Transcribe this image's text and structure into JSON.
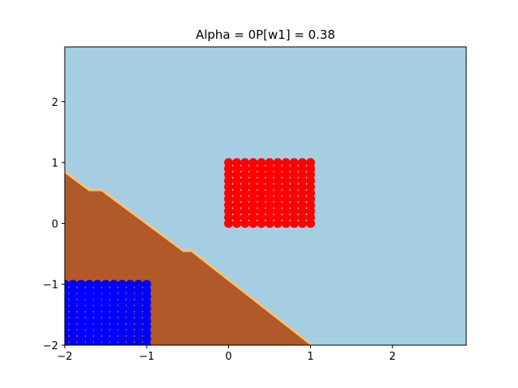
{
  "chart_data": {
    "type": "scatter",
    "title": "Alpha = 0P[w1] = 0.38",
    "xlabel": "",
    "ylabel": "",
    "xlim": [
      -2,
      2.9
    ],
    "ylim": [
      -2,
      2.9
    ],
    "xticks": [
      -2,
      -1,
      0,
      1,
      2
    ],
    "xtick_labels": [
      "−2",
      "−1",
      "0",
      "1",
      "2"
    ],
    "yticks": [
      -2,
      -1,
      0,
      1,
      2
    ],
    "ytick_labels": [
      "−2",
      "−1",
      "0",
      "1",
      "2"
    ],
    "grid": false,
    "legend": "none",
    "decision_regions": [
      {
        "color": "#a6cee3",
        "polygon": [
          [
            -2,
            -2
          ],
          [
            2.9,
            -2
          ],
          [
            2.9,
            2.9
          ],
          [
            -2,
            2.9
          ]
        ]
      },
      {
        "color": "#b15928",
        "polygon": [
          [
            -2,
            -2
          ],
          [
            1.02,
            -2
          ],
          [
            -0.45,
            -0.45
          ],
          [
            -0.55,
            -0.45
          ],
          [
            -1.55,
            0.55
          ],
          [
            -1.7,
            0.55
          ],
          [
            -2,
            0.85
          ]
        ]
      }
    ],
    "boundary": {
      "color": "#fdbf6f",
      "points": [
        [
          -2,
          0.85
        ],
        [
          -1.7,
          0.55
        ],
        [
          -1.55,
          0.55
        ],
        [
          -0.55,
          -0.45
        ],
        [
          -0.45,
          -0.45
        ],
        [
          1.02,
          -2
        ]
      ]
    },
    "series": [
      {
        "color": "#ff0000",
        "points": [
          [
            0,
            0
          ],
          [
            0.1,
            0
          ],
          [
            0.2,
            0
          ],
          [
            0.3,
            0
          ],
          [
            0.4,
            0
          ],
          [
            0.5,
            0
          ],
          [
            0.6,
            0
          ],
          [
            0.7,
            0
          ],
          [
            0.8,
            0
          ],
          [
            0.9,
            0
          ],
          [
            1.0,
            0
          ],
          [
            0,
            0.1
          ],
          [
            0.1,
            0.1
          ],
          [
            0.2,
            0.1
          ],
          [
            0.3,
            0.1
          ],
          [
            0.4,
            0.1
          ],
          [
            0.5,
            0.1
          ],
          [
            0.6,
            0.1
          ],
          [
            0.7,
            0.1
          ],
          [
            0.8,
            0.1
          ],
          [
            0.9,
            0.1
          ],
          [
            1.0,
            0.1
          ],
          [
            0,
            0.2
          ],
          [
            0.1,
            0.2
          ],
          [
            0.2,
            0.2
          ],
          [
            0.3,
            0.2
          ],
          [
            0.4,
            0.2
          ],
          [
            0.5,
            0.2
          ],
          [
            0.6,
            0.2
          ],
          [
            0.7,
            0.2
          ],
          [
            0.8,
            0.2
          ],
          [
            0.9,
            0.2
          ],
          [
            1.0,
            0.2
          ],
          [
            0,
            0.3
          ],
          [
            0.1,
            0.3
          ],
          [
            0.2,
            0.3
          ],
          [
            0.3,
            0.3
          ],
          [
            0.4,
            0.3
          ],
          [
            0.5,
            0.3
          ],
          [
            0.6,
            0.3
          ],
          [
            0.7,
            0.3
          ],
          [
            0.8,
            0.3
          ],
          [
            0.9,
            0.3
          ],
          [
            1.0,
            0.3
          ],
          [
            0,
            0.4
          ],
          [
            0.1,
            0.4
          ],
          [
            0.2,
            0.4
          ],
          [
            0.3,
            0.4
          ],
          [
            0.4,
            0.4
          ],
          [
            0.5,
            0.4
          ],
          [
            0.6,
            0.4
          ],
          [
            0.7,
            0.4
          ],
          [
            0.8,
            0.4
          ],
          [
            0.9,
            0.4
          ],
          [
            1.0,
            0.4
          ],
          [
            0,
            0.5
          ],
          [
            0.1,
            0.5
          ],
          [
            0.2,
            0.5
          ],
          [
            0.3,
            0.5
          ],
          [
            0.4,
            0.5
          ],
          [
            0.5,
            0.5
          ],
          [
            0.6,
            0.5
          ],
          [
            0.7,
            0.5
          ],
          [
            0.8,
            0.5
          ],
          [
            0.9,
            0.5
          ],
          [
            1.0,
            0.5
          ],
          [
            0,
            0.6
          ],
          [
            0.1,
            0.6
          ],
          [
            0.2,
            0.6
          ],
          [
            0.3,
            0.6
          ],
          [
            0.4,
            0.6
          ],
          [
            0.5,
            0.6
          ],
          [
            0.6,
            0.6
          ],
          [
            0.7,
            0.6
          ],
          [
            0.8,
            0.6
          ],
          [
            0.9,
            0.6
          ],
          [
            1.0,
            0.6
          ],
          [
            0,
            0.7
          ],
          [
            0.1,
            0.7
          ],
          [
            0.2,
            0.7
          ],
          [
            0.3,
            0.7
          ],
          [
            0.4,
            0.7
          ],
          [
            0.5,
            0.7
          ],
          [
            0.6,
            0.7
          ],
          [
            0.7,
            0.7
          ],
          [
            0.8,
            0.7
          ],
          [
            0.9,
            0.7
          ],
          [
            1.0,
            0.7
          ],
          [
            0,
            0.8
          ],
          [
            0.1,
            0.8
          ],
          [
            0.2,
            0.8
          ],
          [
            0.3,
            0.8
          ],
          [
            0.4,
            0.8
          ],
          [
            0.5,
            0.8
          ],
          [
            0.6,
            0.8
          ],
          [
            0.7,
            0.8
          ],
          [
            0.8,
            0.8
          ],
          [
            0.9,
            0.8
          ],
          [
            1.0,
            0.8
          ],
          [
            0,
            0.9
          ],
          [
            0.1,
            0.9
          ],
          [
            0.2,
            0.9
          ],
          [
            0.3,
            0.9
          ],
          [
            0.4,
            0.9
          ],
          [
            0.5,
            0.9
          ],
          [
            0.6,
            0.9
          ],
          [
            0.7,
            0.9
          ],
          [
            0.8,
            0.9
          ],
          [
            0.9,
            0.9
          ],
          [
            1.0,
            0.9
          ],
          [
            0,
            1.0
          ],
          [
            0.1,
            1.0
          ],
          [
            0.2,
            1.0
          ],
          [
            0.3,
            1.0
          ],
          [
            0.4,
            1.0
          ],
          [
            0.5,
            1.0
          ],
          [
            0.6,
            1.0
          ],
          [
            0.7,
            1.0
          ],
          [
            0.8,
            1.0
          ],
          [
            0.9,
            1.0
          ],
          [
            1.0,
            1.0
          ]
        ]
      },
      {
        "color": "#0000ff",
        "points": [
          [
            -2,
            -2
          ],
          [
            -1.9,
            -2
          ],
          [
            -1.8,
            -2
          ],
          [
            -1.7,
            -2
          ],
          [
            -1.6,
            -2
          ],
          [
            -1.5,
            -2
          ],
          [
            -1.4,
            -2
          ],
          [
            -1.3,
            -2
          ],
          [
            -1.2,
            -2
          ],
          [
            -1.1,
            -2
          ],
          [
            -1.0,
            -2
          ],
          [
            -2,
            -1.9
          ],
          [
            -1.9,
            -1.9
          ],
          [
            -1.8,
            -1.9
          ],
          [
            -1.7,
            -1.9
          ],
          [
            -1.6,
            -1.9
          ],
          [
            -1.5,
            -1.9
          ],
          [
            -1.4,
            -1.9
          ],
          [
            -1.3,
            -1.9
          ],
          [
            -1.2,
            -1.9
          ],
          [
            -1.1,
            -1.9
          ],
          [
            -1.0,
            -1.9
          ],
          [
            -2,
            -1.8
          ],
          [
            -1.9,
            -1.8
          ],
          [
            -1.8,
            -1.8
          ],
          [
            -1.7,
            -1.8
          ],
          [
            -1.6,
            -1.8
          ],
          [
            -1.5,
            -1.8
          ],
          [
            -1.4,
            -1.8
          ],
          [
            -1.3,
            -1.8
          ],
          [
            -1.2,
            -1.8
          ],
          [
            -1.1,
            -1.8
          ],
          [
            -1.0,
            -1.8
          ],
          [
            -2,
            -1.7
          ],
          [
            -1.9,
            -1.7
          ],
          [
            -1.8,
            -1.7
          ],
          [
            -1.7,
            -1.7
          ],
          [
            -1.6,
            -1.7
          ],
          [
            -1.5,
            -1.7
          ],
          [
            -1.4,
            -1.7
          ],
          [
            -1.3,
            -1.7
          ],
          [
            -1.2,
            -1.7
          ],
          [
            -1.1,
            -1.7
          ],
          [
            -1.0,
            -1.7
          ],
          [
            -2,
            -1.6
          ],
          [
            -1.9,
            -1.6
          ],
          [
            -1.8,
            -1.6
          ],
          [
            -1.7,
            -1.6
          ],
          [
            -1.6,
            -1.6
          ],
          [
            -1.5,
            -1.6
          ],
          [
            -1.4,
            -1.6
          ],
          [
            -1.3,
            -1.6
          ],
          [
            -1.2,
            -1.6
          ],
          [
            -1.1,
            -1.6
          ],
          [
            -1.0,
            -1.6
          ],
          [
            -2,
            -1.5
          ],
          [
            -1.9,
            -1.5
          ],
          [
            -1.8,
            -1.5
          ],
          [
            -1.7,
            -1.5
          ],
          [
            -1.6,
            -1.5
          ],
          [
            -1.5,
            -1.5
          ],
          [
            -1.4,
            -1.5
          ],
          [
            -1.3,
            -1.5
          ],
          [
            -1.2,
            -1.5
          ],
          [
            -1.1,
            -1.5
          ],
          [
            -1.0,
            -1.5
          ],
          [
            -2,
            -1.4
          ],
          [
            -1.9,
            -1.4
          ],
          [
            -1.8,
            -1.4
          ],
          [
            -1.7,
            -1.4
          ],
          [
            -1.6,
            -1.4
          ],
          [
            -1.5,
            -1.4
          ],
          [
            -1.4,
            -1.4
          ],
          [
            -1.3,
            -1.4
          ],
          [
            -1.2,
            -1.4
          ],
          [
            -1.1,
            -1.4
          ],
          [
            -1.0,
            -1.4
          ],
          [
            -2,
            -1.3
          ],
          [
            -1.9,
            -1.3
          ],
          [
            -1.8,
            -1.3
          ],
          [
            -1.7,
            -1.3
          ],
          [
            -1.6,
            -1.3
          ],
          [
            -1.5,
            -1.3
          ],
          [
            -1.4,
            -1.3
          ],
          [
            -1.3,
            -1.3
          ],
          [
            -1.2,
            -1.3
          ],
          [
            -1.1,
            -1.3
          ],
          [
            -1.0,
            -1.3
          ],
          [
            -2,
            -1.2
          ],
          [
            -1.9,
            -1.2
          ],
          [
            -1.8,
            -1.2
          ],
          [
            -1.7,
            -1.2
          ],
          [
            -1.6,
            -1.2
          ],
          [
            -1.5,
            -1.2
          ],
          [
            -1.4,
            -1.2
          ],
          [
            -1.3,
            -1.2
          ],
          [
            -1.2,
            -1.2
          ],
          [
            -1.1,
            -1.2
          ],
          [
            -1.0,
            -1.2
          ],
          [
            -2,
            -1.1
          ],
          [
            -1.9,
            -1.1
          ],
          [
            -1.8,
            -1.1
          ],
          [
            -1.7,
            -1.1
          ],
          [
            -1.6,
            -1.1
          ],
          [
            -1.5,
            -1.1
          ],
          [
            -1.4,
            -1.1
          ],
          [
            -1.3,
            -1.1
          ],
          [
            -1.2,
            -1.1
          ],
          [
            -1.1,
            -1.1
          ],
          [
            -1.0,
            -1.1
          ],
          [
            -2,
            -1.0
          ],
          [
            -1.9,
            -1.0
          ],
          [
            -1.8,
            -1.0
          ],
          [
            -1.7,
            -1.0
          ],
          [
            -1.6,
            -1.0
          ],
          [
            -1.5,
            -1.0
          ],
          [
            -1.4,
            -1.0
          ],
          [
            -1.3,
            -1.0
          ],
          [
            -1.2,
            -1.0
          ],
          [
            -1.1,
            -1.0
          ],
          [
            -1.0,
            -1.0
          ]
        ]
      }
    ]
  }
}
